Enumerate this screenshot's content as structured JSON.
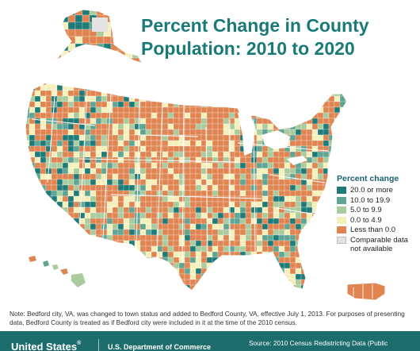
{
  "title": {
    "line1": "Percent Change in County",
    "line2": "Population: 2010 to 2020"
  },
  "legend": {
    "title": "Percent change",
    "items": [
      {
        "label": "20.0 or more",
        "color": "#1f7b78"
      },
      {
        "label": "10.0 to 19.9",
        "color": "#5fa594"
      },
      {
        "label": "5.0 to 9.9",
        "color": "#aacb9e"
      },
      {
        "label": "0.0 to 4.9",
        "color": "#f5f0bb"
      },
      {
        "label": "Less than 0.0",
        "color": "#e08552"
      },
      {
        "label": "Comparable data not available",
        "color": "#e3e3e3"
      }
    ]
  },
  "note": "Note: Bedford city, VA, was changed to town status and added to Bedford County, VA, effective July 1, 2013. For purposes of presenting data, Bedford County is treated as if Bedford city were included in it at the time of the 2010 census.",
  "footer": {
    "brand": "United States",
    "registered": "®",
    "department": "U.S. Department of Commerce",
    "source": "Source: 2010 Census Redistricting Data (Public"
  },
  "map": {
    "colors": {
      "lakes": "#ffffff",
      "land_outline": "#ffffff",
      "state_border": "#ffffff",
      "footer_band": "#1d6d6c",
      "title_color": "#1a7a78"
    }
  }
}
